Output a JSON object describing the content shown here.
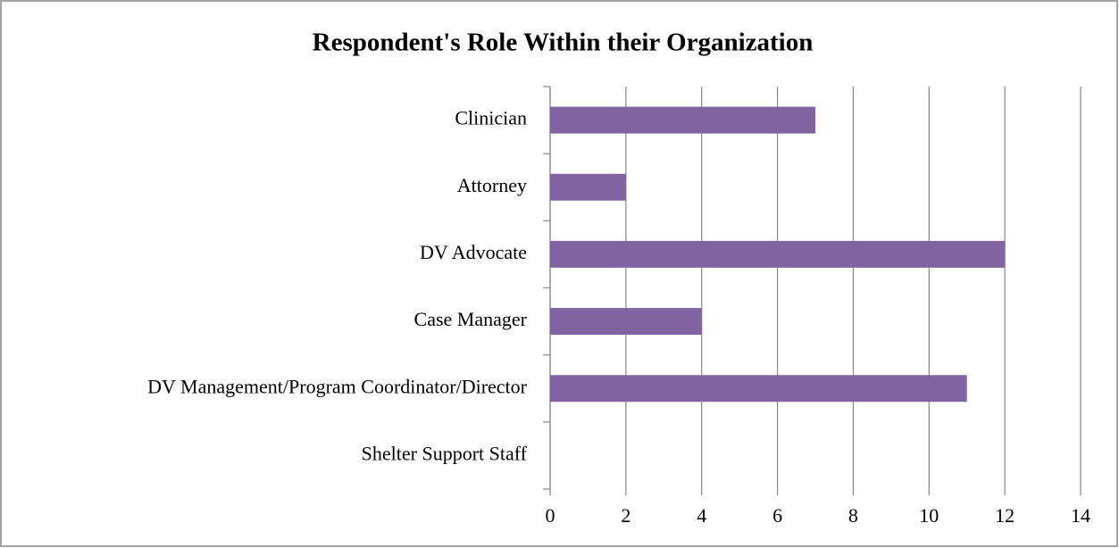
{
  "chart_data": {
    "type": "bar",
    "orientation": "horizontal",
    "title": "Respondent's Role Within their Organization",
    "categories": [
      "Clinician",
      "Attorney",
      "DV Advocate",
      "Case Manager",
      "DV Management/Program Coordinator/Director",
      "Shelter Support Staff"
    ],
    "values": [
      7,
      2,
      12,
      4,
      11,
      0
    ],
    "color": "#8064a2",
    "xlim": [
      0,
      14
    ],
    "xticks": [
      0,
      2,
      4,
      6,
      8,
      10,
      12,
      14
    ],
    "grid": true
  }
}
